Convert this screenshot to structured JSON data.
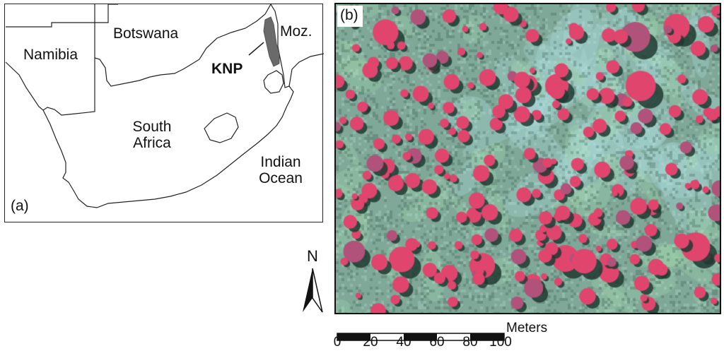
{
  "panel_a": {
    "label": "(a)",
    "countries": {
      "namibia": "Namibia",
      "botswana": "Botswana",
      "mozambique": "Moz.",
      "south_africa_line1": "South",
      "south_africa_line2": "Africa"
    },
    "ocean_line1": "Indian",
    "ocean_line2": "Ocean",
    "park_label": "KNP",
    "park_color": "#6a6a6a"
  },
  "panel_b": {
    "label": "(b)",
    "palette": {
      "background": "#7fa898",
      "tree_canopy": "#e0456e",
      "shadow": "#1f3a30",
      "bare_soil": "#a9d6d8"
    }
  },
  "north_arrow": {
    "letter": "N",
    "icon": "north-arrow-icon"
  },
  "scale_bar": {
    "unit": "Meters",
    "ticks": [
      "0",
      "20",
      "40",
      "60",
      "80",
      "100"
    ]
  }
}
